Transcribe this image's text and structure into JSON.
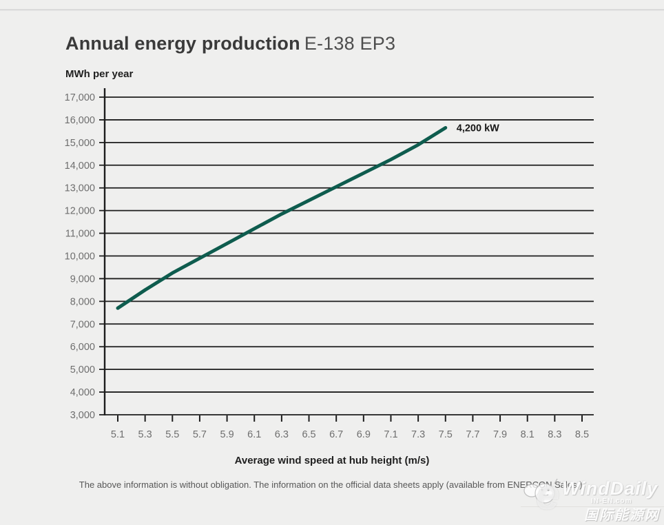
{
  "header": {
    "title_main": "Annual energy production",
    "title_model": "E-138 EP3"
  },
  "chart_data": {
    "type": "line",
    "title": "Annual energy production E-138 EP3",
    "ylabel": "MWh per year",
    "xlabel": "Average wind speed at hub height (m/s)",
    "ylim": [
      3000,
      17000
    ],
    "xlim": [
      5.1,
      8.5
    ],
    "grid": true,
    "y_ticks": [
      3000,
      4000,
      5000,
      6000,
      7000,
      8000,
      9000,
      10000,
      11000,
      12000,
      13000,
      14000,
      15000,
      16000,
      17000
    ],
    "x_ticks": [
      5.1,
      5.3,
      5.5,
      5.7,
      5.9,
      6.1,
      6.3,
      6.5,
      6.7,
      6.9,
      7.1,
      7.3,
      7.5,
      7.7,
      7.9,
      8.1,
      8.3,
      8.5
    ],
    "x": [
      5.1,
      5.3,
      5.5,
      5.7,
      5.9,
      6.1,
      6.3,
      6.5,
      6.7,
      6.9,
      7.1,
      7.3,
      7.5
    ],
    "series": [
      {
        "name": "4,200 kW",
        "values": [
          7700,
          8500,
          9250,
          9900,
          10550,
          11200,
          11850,
          12450,
          13050,
          13650,
          14250,
          14900,
          15650
        ]
      }
    ],
    "legend_position": "end-of-line-annotation",
    "line_color": "#0e5c4e",
    "grid_color": "#1c1c1c",
    "axis_color": "#1c1c1c"
  },
  "footer": {
    "disclaimer": "The above information is without obligation. The information on the official data sheets apply (available from ENERCON Sales.)."
  },
  "watermark": {
    "brand": "WindDaily",
    "site": "IN-EN.com",
    "chinese": "国际能源网",
    "logo_letter": "e"
  }
}
